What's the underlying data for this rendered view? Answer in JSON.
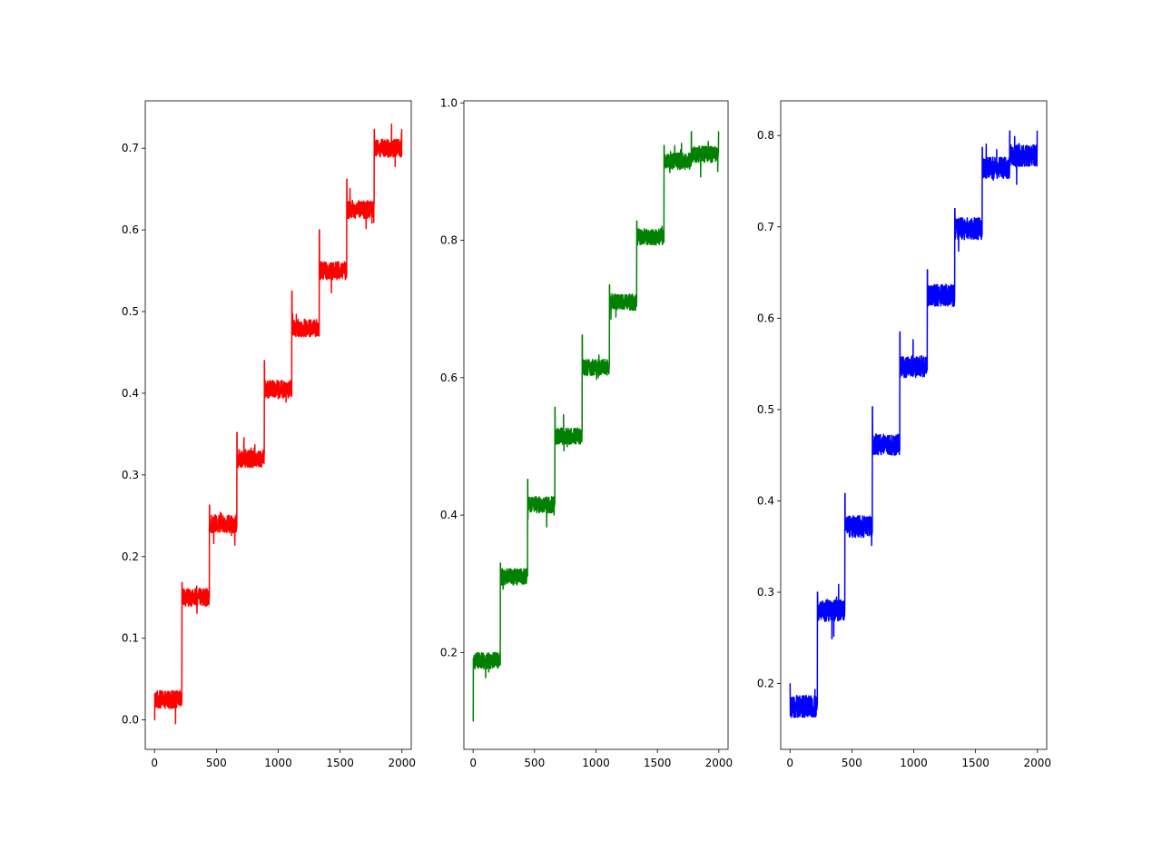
{
  "chart_data": [
    {
      "type": "line",
      "color": "#ff0000",
      "xlim": [
        -75,
        2075
      ],
      "ylim": [
        -0.036,
        0.758
      ],
      "x_ticks": [
        0,
        500,
        1000,
        1500,
        2000
      ],
      "y_ticks": [
        0.0,
        0.1,
        0.2,
        0.3,
        0.4,
        0.5,
        0.6,
        0.7
      ],
      "x_tick_labels": [
        "0",
        "500",
        "1000",
        "1500",
        "2000"
      ],
      "y_tick_labels": [
        "0.0",
        "0.1",
        "0.2",
        "0.3",
        "0.4",
        "0.5",
        "0.6",
        "0.7"
      ],
      "n_points": 2000,
      "segment_length": 222,
      "levels": [
        0.025,
        0.15,
        0.24,
        0.32,
        0.405,
        0.48,
        0.55,
        0.625,
        0.7
      ],
      "noise_amplitude": 0.011,
      "spikes": [
        0.0,
        0.168,
        0.263,
        0.352,
        0.44,
        0.525,
        0.6,
        0.662,
        0.723
      ],
      "grid": false,
      "legend": "none"
    },
    {
      "type": "line",
      "color": "#008000",
      "xlim": [
        -75,
        2075
      ],
      "ylim": [
        0.059,
        1.003
      ],
      "x_ticks": [
        0,
        500,
        1000,
        1500,
        2000
      ],
      "y_ticks": [
        0.2,
        0.4,
        0.6,
        0.8,
        1.0
      ],
      "x_tick_labels": [
        "0",
        "500",
        "1000",
        "1500",
        "2000"
      ],
      "y_tick_labels": [
        "0.2",
        "0.4",
        "0.6",
        "0.8",
        "1.0"
      ],
      "n_points": 2000,
      "segment_length": 222,
      "levels": [
        0.188,
        0.31,
        0.415,
        0.515,
        0.615,
        0.71,
        0.805,
        0.915,
        0.925
      ],
      "noise_amplitude": 0.012,
      "spikes": [
        0.1,
        0.33,
        0.452,
        0.557,
        0.662,
        0.735,
        0.828,
        0.938,
        0.958
      ],
      "grid": false,
      "legend": "none"
    },
    {
      "type": "line",
      "color": "#0000ff",
      "xlim": [
        -75,
        2075
      ],
      "ylim": [
        0.128,
        0.838
      ],
      "x_ticks": [
        0,
        500,
        1000,
        1500,
        2000
      ],
      "y_ticks": [
        0.2,
        0.3,
        0.4,
        0.5,
        0.6,
        0.7,
        0.8
      ],
      "x_tick_labels": [
        "0",
        "500",
        "1000",
        "1500",
        "2000"
      ],
      "y_tick_labels": [
        "0.2",
        "0.3",
        "0.4",
        "0.5",
        "0.6",
        "0.7",
        "0.8"
      ],
      "n_points": 2000,
      "segment_length": 222,
      "levels": [
        0.175,
        0.28,
        0.372,
        0.462,
        0.547,
        0.625,
        0.698,
        0.765,
        0.778
      ],
      "noise_amplitude": 0.012,
      "spikes": [
        0.2,
        0.3,
        0.408,
        0.503,
        0.585,
        0.653,
        0.72,
        0.787,
        0.805
      ],
      "grid": false,
      "legend": "none"
    }
  ]
}
